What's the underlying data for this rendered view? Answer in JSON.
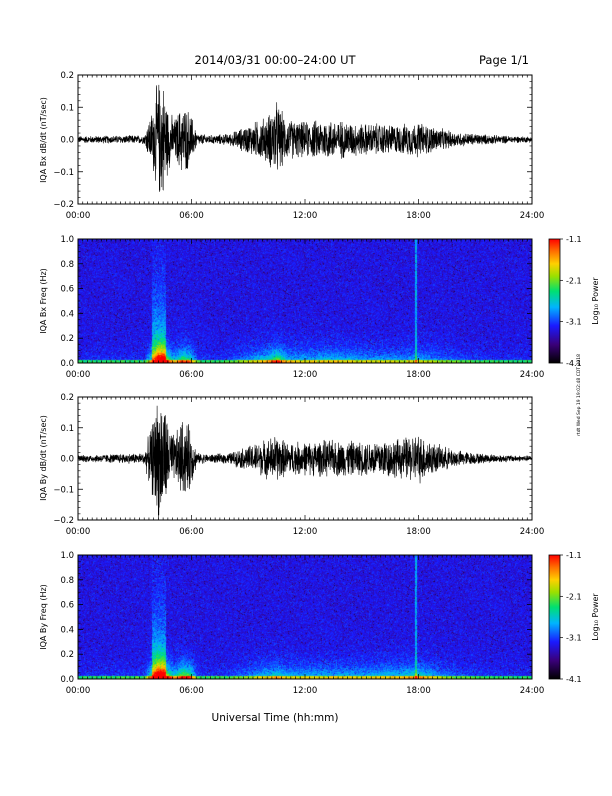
{
  "header": {
    "title": "2014/03/31  00:00–24:00 UT",
    "page": "Page 1/1"
  },
  "xaxis": {
    "label": "Universal Time (hh:mm)",
    "ticks": [
      "00:00",
      "06:00",
      "12:00",
      "18:00",
      "24:00"
    ],
    "range_hours": [
      0,
      24
    ]
  },
  "colorbar": {
    "label": "Log₁₀ Power",
    "ticks": [
      "-1.1",
      "-2.1",
      "-3.1",
      "-4.1"
    ],
    "range": [
      -4.1,
      -1.1
    ],
    "colors": [
      "#000000",
      "#3a007a",
      "#1a1aff",
      "#00b4ff",
      "#00e070",
      "#9be000",
      "#ffd000",
      "#ff7000",
      "#ff0000"
    ]
  },
  "side_note": "rtdt Wed Sep 19 19:02:48 CDT 2018",
  "chart_data": [
    {
      "type": "line",
      "ylabel": "IQA Bx dB/dt (nT/sec)",
      "yticks": [
        "0.2",
        "0.1",
        "0.0",
        "−0.1",
        "−0.2"
      ],
      "ylim": [
        -0.2,
        0.2
      ],
      "activity_envelope": {
        "hours": [
          0,
          3.5,
          4.0,
          4.2,
          4.5,
          4.8,
          5.1,
          5.5,
          5.9,
          6.3,
          7,
          8,
          9,
          10,
          10.5,
          11,
          12,
          13,
          14,
          15,
          16,
          17,
          18,
          19,
          20,
          21,
          22,
          23,
          24
        ],
        "amplitude": [
          0.012,
          0.015,
          0.12,
          0.2,
          0.2,
          0.1,
          0.07,
          0.12,
          0.1,
          0.02,
          0.015,
          0.02,
          0.05,
          0.08,
          0.13,
          0.07,
          0.06,
          0.07,
          0.065,
          0.055,
          0.055,
          0.05,
          0.06,
          0.04,
          0.025,
          0.02,
          0.015,
          0.012,
          0.01
        ]
      }
    },
    {
      "type": "heatmap",
      "ylabel": "IQA Bx Freq (Hz)",
      "yticks": [
        "1.0",
        "0.8",
        "0.6",
        "0.4",
        "0.2",
        "0.0"
      ],
      "ylim": [
        0,
        1.0
      ]
    },
    {
      "type": "line",
      "ylabel": "IQA By dB/dt (nT/sec)",
      "yticks": [
        "0.2",
        "0.1",
        "0.0",
        "−0.1",
        "−0.2"
      ],
      "ylim": [
        -0.2,
        0.2
      ],
      "activity_envelope": {
        "hours": [
          0,
          3.5,
          4.0,
          4.2,
          4.5,
          4.8,
          5.1,
          5.5,
          5.9,
          6.3,
          7,
          8,
          9,
          10,
          10.5,
          11,
          12,
          13,
          14,
          15,
          16,
          17,
          18,
          19,
          20,
          21,
          22,
          23,
          24
        ],
        "amplitude": [
          0.012,
          0.02,
          0.15,
          0.22,
          0.22,
          0.12,
          0.08,
          0.14,
          0.12,
          0.02,
          0.015,
          0.02,
          0.045,
          0.07,
          0.085,
          0.06,
          0.06,
          0.065,
          0.065,
          0.06,
          0.07,
          0.07,
          0.09,
          0.05,
          0.03,
          0.02,
          0.015,
          0.012,
          0.01
        ]
      }
    },
    {
      "type": "heatmap",
      "ylabel": "IQA By Freq (Hz)",
      "yticks": [
        "1.0",
        "0.8",
        "0.6",
        "0.4",
        "0.2",
        "0.0"
      ],
      "ylim": [
        0,
        1.0
      ]
    }
  ]
}
